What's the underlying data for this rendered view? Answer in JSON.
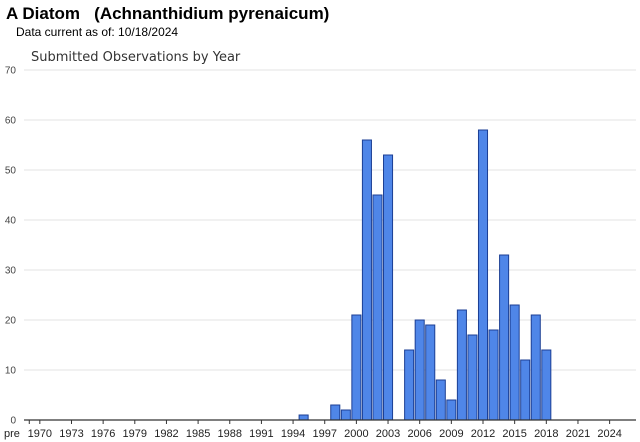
{
  "header": {
    "title": "A Diatom   (Achnanthidium pyrenaicum)",
    "data_current": "Data current as of: 10/18/2024"
  },
  "colors": {
    "bar_fill": "#4f86e8",
    "bar_stroke": "#1c3f94",
    "grid": "#e3e3e3",
    "axis": "#333333"
  },
  "chart_data": {
    "type": "bar",
    "title": "Submitted Observations by Year",
    "xlabel": "",
    "ylabel": "",
    "ylim": [
      0,
      70
    ],
    "yticks": [
      0,
      10,
      20,
      30,
      40,
      50,
      60,
      70
    ],
    "grid": true,
    "x_tick_labels": [
      "pre",
      "1970",
      "1973",
      "1976",
      "1979",
      "1982",
      "1985",
      "1988",
      "1991",
      "1994",
      "1997",
      "2000",
      "2003",
      "2006",
      "2009",
      "2012",
      "2015",
      "2018",
      "2021",
      "2024"
    ],
    "x_tick_positions": [
      "pre",
      1970,
      1973,
      1976,
      1979,
      1982,
      1985,
      1988,
      1991,
      1994,
      1997,
      2000,
      2003,
      2006,
      2009,
      2012,
      2015,
      2018,
      2021,
      2024
    ],
    "categories": [
      1995,
      1998,
      1999,
      2000,
      2001,
      2002,
      2003,
      2005,
      2006,
      2007,
      2008,
      2009,
      2010,
      2011,
      2012,
      2013,
      2014,
      2015,
      2016,
      2017,
      2018
    ],
    "values": [
      1,
      3,
      2,
      21,
      56,
      45,
      53,
      14,
      20,
      19,
      8,
      4,
      22,
      17,
      58,
      18,
      33,
      23,
      12,
      21,
      14
    ]
  }
}
